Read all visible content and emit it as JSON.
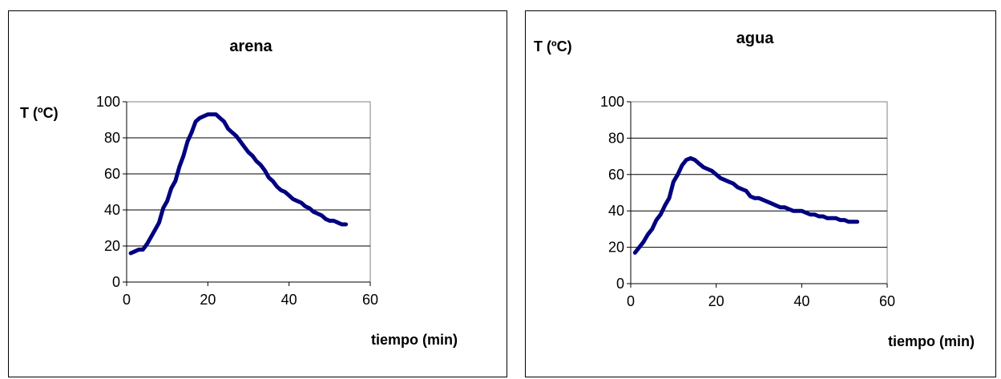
{
  "chart_data": [
    {
      "type": "line",
      "title": "arena",
      "ylabel": "T (ºC)",
      "xlabel": "tiempo (min)",
      "xlim": [
        0,
        60
      ],
      "ylim": [
        0,
        100
      ],
      "xticks": [
        "0",
        "20",
        "40",
        "60"
      ],
      "yticks": [
        "0",
        "20",
        "40",
        "60",
        "80",
        "100"
      ],
      "grid": "horizontal",
      "legend": "none",
      "line_color": "#000080",
      "x": [
        1,
        2,
        3,
        4,
        5,
        6,
        7,
        8,
        9,
        10,
        11,
        12,
        13,
        14,
        15,
        16,
        17,
        18,
        19,
        20,
        21,
        22,
        23,
        24,
        25,
        26,
        27,
        28,
        29,
        30,
        31,
        32,
        33,
        34,
        35,
        36,
        37,
        38,
        39,
        40,
        41,
        42,
        43,
        44,
        45,
        46,
        47,
        48,
        49,
        50,
        51,
        52,
        53,
        54
      ],
      "y": [
        16,
        17,
        18,
        18,
        21,
        25,
        29,
        33,
        41,
        45,
        52,
        56,
        64,
        70,
        78,
        83,
        89,
        91,
        92,
        93,
        93,
        93,
        91,
        89,
        85,
        83,
        81,
        78,
        75,
        72,
        70,
        67,
        65,
        62,
        58,
        56,
        53,
        51,
        50,
        48,
        46,
        45,
        44,
        42,
        41,
        39,
        38,
        37,
        35,
        34,
        34,
        33,
        32,
        32
      ]
    },
    {
      "type": "line",
      "title": "agua",
      "ylabel": "T (ºC)",
      "xlabel": "tiempo (min)",
      "xlim": [
        0,
        60
      ],
      "ylim": [
        0,
        100
      ],
      "xticks": [
        "0",
        "20",
        "40",
        "60"
      ],
      "yticks": [
        "0",
        "20",
        "40",
        "60",
        "80",
        "100"
      ],
      "grid": "horizontal",
      "legend": "none",
      "line_color": "#000080",
      "x": [
        1,
        2,
        3,
        4,
        5,
        6,
        7,
        8,
        9,
        10,
        11,
        12,
        13,
        14,
        15,
        16,
        17,
        18,
        19,
        20,
        21,
        22,
        23,
        24,
        25,
        26,
        27,
        28,
        29,
        30,
        31,
        32,
        33,
        34,
        35,
        36,
        37,
        38,
        39,
        40,
        41,
        42,
        43,
        44,
        45,
        46,
        47,
        48,
        49,
        50,
        51,
        52,
        53
      ],
      "y": [
        17,
        20,
        23,
        27,
        30,
        35,
        38,
        43,
        47,
        56,
        60,
        65,
        68,
        69,
        68,
        66,
        64,
        63,
        62,
        60,
        58,
        57,
        56,
        55,
        53,
        52,
        51,
        48,
        47,
        47,
        46,
        45,
        44,
        43,
        42,
        42,
        41,
        40,
        40,
        40,
        39,
        38,
        38,
        37,
        37,
        36,
        36,
        36,
        35,
        35,
        34,
        34,
        34
      ]
    }
  ]
}
